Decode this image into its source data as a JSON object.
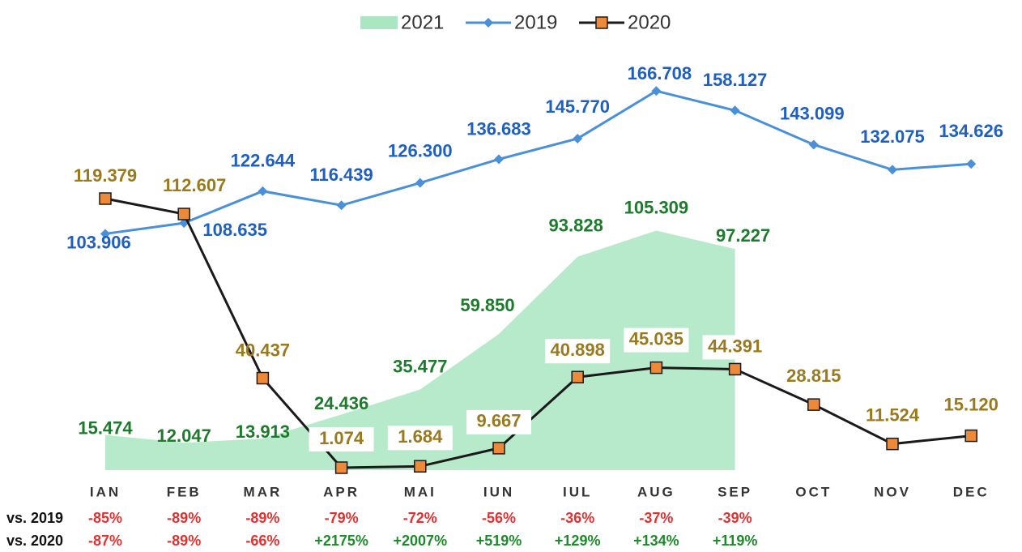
{
  "chart_data": {
    "type": "line",
    "categories": [
      "IAN",
      "FEB",
      "MAR",
      "APR",
      "MAI",
      "IUN",
      "IUL",
      "AUG",
      "SEP",
      "OCT",
      "NOV",
      "DEC"
    ],
    "legend": "top",
    "series": [
      {
        "name": "2021",
        "type": "area",
        "color": "#a9e6c1",
        "label_color": "#1e7a2c",
        "values": [
          15.474,
          12.047,
          13.913,
          24.436,
          35.477,
          59.85,
          93.828,
          105.309,
          97.227,
          null,
          null,
          null
        ],
        "value_labels": [
          "15.474",
          "12.047",
          "13.913",
          "24.436",
          "35.477",
          "59.850",
          "93.828",
          "105.309",
          "97.227",
          null,
          null,
          null
        ]
      },
      {
        "name": "2019",
        "type": "line",
        "color": "#4a90d9",
        "marker": "diamond",
        "label_color": "#1f5fbf",
        "values": [
          103.906,
          108.635,
          122.644,
          116.439,
          126.3,
          136.683,
          145.77,
          166.708,
          158.127,
          143.099,
          132.075,
          134.626
        ],
        "value_labels": [
          "103.906",
          "108.635",
          "122.644",
          "116.439",
          "126.300",
          "136.683",
          "145.770",
          "166.708",
          "158.127",
          "143.099",
          "132.075",
          "134.626"
        ]
      },
      {
        "name": "2020",
        "type": "line",
        "color": "#1a1a1a",
        "marker": "square",
        "marker_color": "#ec8a3a",
        "label_color": "#9a7a1e",
        "values": [
          119.379,
          112.607,
          40.437,
          1.074,
          1.684,
          9.667,
          40.898,
          45.035,
          44.391,
          28.815,
          11.524,
          15.12
        ],
        "value_labels": [
          "119.379",
          "112.607",
          "40.437",
          "1.074",
          "1.684",
          "9.667",
          "40.898",
          "45.035",
          "44.391",
          "28.815",
          "11.524",
          "15.120"
        ]
      }
    ],
    "comparisons": [
      {
        "label": "vs. 2019",
        "values": [
          "-85%",
          "-89%",
          "-89%",
          "-79%",
          "-72%",
          "-56%",
          "-36%",
          "-37%",
          "-39%"
        ]
      },
      {
        "label": "vs. 2020",
        "values": [
          "-87%",
          "-89%",
          "-66%",
          "+2175%",
          "+2007%",
          "+519%",
          "+129%",
          "+134%",
          "+119%"
        ]
      }
    ]
  }
}
